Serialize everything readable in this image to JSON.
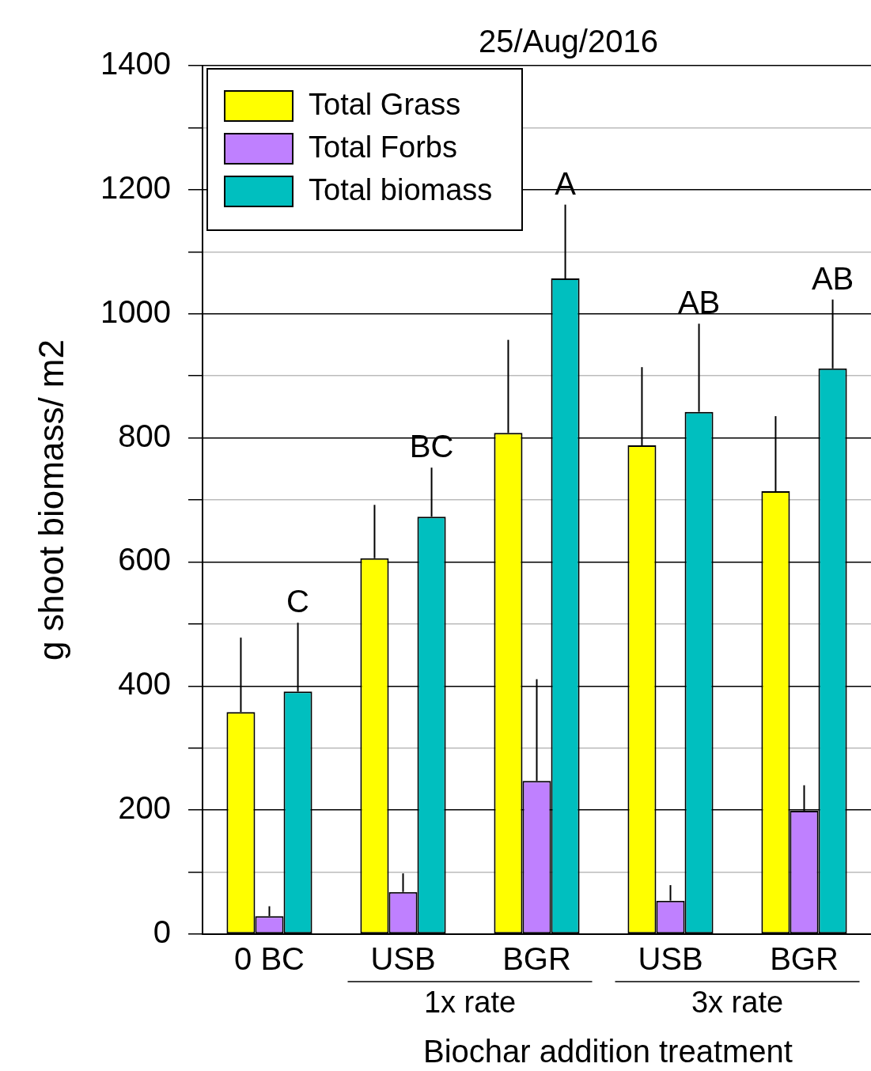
{
  "chart_data": {
    "type": "bar",
    "title": "25/Aug/2016",
    "ylabel": "g shoot biomass/ m2",
    "xlabel": "Biochar addition treatment",
    "categories": [
      "0 BC",
      "USB",
      "BGR",
      "USB",
      "BGR"
    ],
    "series": [
      {
        "name": "Total Grass",
        "color": "#ffff00",
        "values": [
          358,
          606,
          808,
          788,
          714
        ],
        "errors": [
          [
            358,
            478
          ],
          [
            606,
            692
          ],
          [
            808,
            958
          ],
          [
            788,
            914
          ],
          [
            714,
            835
          ]
        ]
      },
      {
        "name": "Total Forbs",
        "color": "#bf80ff",
        "values": [
          29,
          68,
          247,
          54,
          199
        ],
        "errors": [
          [
            29,
            45
          ],
          [
            68,
            98
          ],
          [
            247,
            411
          ],
          [
            54,
            79
          ],
          [
            199,
            240
          ]
        ]
      },
      {
        "name": "Total biomass",
        "color": "#00bfbf",
        "values": [
          391,
          673,
          1057,
          842,
          912
        ],
        "errors": [
          [
            391,
            502
          ],
          [
            673,
            752
          ],
          [
            1057,
            1176
          ],
          [
            842,
            984
          ],
          [
            912,
            1023
          ]
        ]
      }
    ],
    "ylim": [
      0,
      1400
    ],
    "yticks": [
      0,
      {
        "value": 100,
        "label": null
      },
      200,
      {
        "value": 300,
        "label": null
      },
      400,
      {
        "value": 500,
        "label": null
      },
      600,
      {
        "value": 700,
        "label": null
      },
      800,
      {
        "value": 900,
        "label": null
      },
      1000,
      {
        "value": 1100,
        "label": null
      },
      1200,
      {
        "value": 1300,
        "label": null
      },
      1400
    ],
    "grid": "y",
    "legend": "top left",
    "annotations": [
      "C",
      "BC",
      "A",
      "AB",
      "AB",
      "1x rate",
      "3x rate"
    ]
  }
}
